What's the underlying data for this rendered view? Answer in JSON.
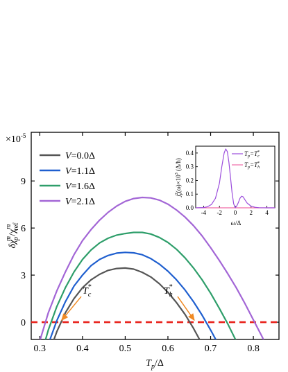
{
  "chart_data": [
    {
      "type": "line",
      "scale_label": "×10",
      "scale_exp": "-5",
      "xlabel": {
        "main": "T",
        "sub": "p",
        "tail": "/Δ"
      },
      "ylabel": {
        "a": "δχ",
        "a_sup": "m",
        "a_sub": "p",
        "b": "/χ",
        "b_sup": "m",
        "b_sub": "ref"
      },
      "xlim": [
        0.28,
        0.86
      ],
      "ylim": [
        -1.1,
        12.1
      ],
      "xticks": [
        "0.3",
        "0.4",
        "0.5",
        "0.6",
        "0.7",
        "0.8"
      ],
      "xtick_values": [
        0.3,
        0.4,
        0.5,
        0.6,
        0.7,
        0.8
      ],
      "yticks": [
        "0",
        "3",
        "6",
        "9"
      ],
      "ytick_values": [
        0,
        3,
        6,
        9
      ],
      "grid": false,
      "legend_position": "top-left",
      "series": [
        {
          "name_prefix": "V",
          "name_value": "=0.0Δ",
          "color": "#555555",
          "x": [
            0.3,
            0.32,
            0.34,
            0.36,
            0.38,
            0.4,
            0.42,
            0.44,
            0.46,
            0.48,
            0.5,
            0.52,
            0.54,
            0.56,
            0.58,
            0.6,
            0.62,
            0.64,
            0.66,
            0.68,
            0.7
          ],
          "y": [
            -3.9,
            -2.1,
            -0.6,
            0.6,
            1.5,
            2.2,
            2.7,
            3.05,
            3.3,
            3.42,
            3.45,
            3.38,
            3.18,
            2.88,
            2.45,
            1.9,
            1.25,
            0.5,
            -0.4,
            -1.4,
            -2.5
          ]
        },
        {
          "name_prefix": "V",
          "name_value": "=1.1Δ",
          "color": "#1f5fcf",
          "x": [
            0.3,
            0.32,
            0.34,
            0.36,
            0.38,
            0.4,
            0.42,
            0.44,
            0.46,
            0.48,
            0.5,
            0.52,
            0.54,
            0.56,
            0.58,
            0.6,
            0.62,
            0.64,
            0.66,
            0.68,
            0.7,
            0.72,
            0.74
          ],
          "y": [
            -3.2,
            -1.4,
            0.1,
            1.3,
            2.3,
            3.0,
            3.6,
            4.0,
            4.25,
            4.4,
            4.45,
            4.42,
            4.3,
            4.05,
            3.7,
            3.25,
            2.7,
            2.05,
            1.3,
            0.45,
            -0.5,
            -1.5,
            -2.6
          ]
        },
        {
          "name_prefix": "V",
          "name_value": "=1.6Δ",
          "color": "#2e9e6a",
          "x": [
            0.3,
            0.32,
            0.34,
            0.36,
            0.38,
            0.4,
            0.42,
            0.44,
            0.46,
            0.48,
            0.5,
            0.52,
            0.54,
            0.56,
            0.58,
            0.6,
            0.62,
            0.64,
            0.66,
            0.68,
            0.7,
            0.72,
            0.74,
            0.76,
            0.78
          ],
          "y": [
            -2.4,
            -0.5,
            1.0,
            2.2,
            3.2,
            4.0,
            4.6,
            5.05,
            5.35,
            5.55,
            5.65,
            5.72,
            5.72,
            5.62,
            5.4,
            5.08,
            4.65,
            4.1,
            3.45,
            2.7,
            1.85,
            0.9,
            -0.1,
            -1.2,
            -2.4
          ]
        },
        {
          "name_prefix": "V",
          "name_value": "=2.1Δ",
          "color": "#a366d6",
          "x": [
            0.3,
            0.32,
            0.34,
            0.36,
            0.38,
            0.4,
            0.42,
            0.44,
            0.46,
            0.48,
            0.5,
            0.52,
            0.54,
            0.56,
            0.58,
            0.6,
            0.62,
            0.64,
            0.66,
            0.68,
            0.7,
            0.72,
            0.74,
            0.76,
            0.78,
            0.8,
            0.82,
            0.84
          ],
          "y": [
            -1.2,
            0.6,
            2.0,
            3.2,
            4.3,
            5.2,
            5.9,
            6.5,
            7.0,
            7.4,
            7.7,
            7.88,
            7.95,
            7.92,
            7.78,
            7.52,
            7.15,
            6.7,
            6.15,
            5.5,
            4.75,
            3.95,
            3.1,
            2.2,
            1.2,
            0.15,
            -0.9,
            -2.0
          ]
        }
      ],
      "reference_line": {
        "y": 0,
        "color": "#e8211a",
        "style": "dashed"
      },
      "annotations": [
        {
          "main": "T",
          "sup": "*",
          "sub": "c",
          "arrow_to_x": 0.345,
          "arrow_to_y": 0.0,
          "text_x": 0.41,
          "text_y": 1.9
        },
        {
          "main": "T",
          "sup": "*",
          "sub": "h",
          "arrow_to_x": 0.668,
          "arrow_to_y": 0.0,
          "text_x": 0.6,
          "text_y": 1.9
        }
      ]
    },
    {
      "type": "line",
      "role": "inset",
      "xlabel": {
        "main": "ω",
        "tail": "/Δ"
      },
      "ylabel": "j²_p(ω)×10³ (Δ/ħ)",
      "xlim": [
        -5,
        5
      ],
      "ylim": [
        0,
        0.45
      ],
      "xticks": [
        "-4",
        "-2",
        "0",
        "2",
        "4"
      ],
      "xtick_values": [
        -4,
        -2,
        0,
        2,
        4
      ],
      "yticks": [
        "0.0",
        "0.1",
        "0.2",
        "0.3",
        "0.4"
      ],
      "ytick_values": [
        0.0,
        0.1,
        0.2,
        0.3,
        0.4
      ],
      "legend_position": "top-right",
      "series": [
        {
          "name": "T_p=T_c*",
          "color": "#9b4ddc",
          "x": [
            -5,
            -4,
            -3.5,
            -3,
            -2.5,
            -2,
            -1.7,
            -1.4,
            -1.2,
            -1.0,
            -0.8,
            -0.6,
            -0.4,
            -0.2,
            0.0,
            0.2,
            0.4,
            0.6,
            0.8,
            1.0,
            1.2,
            1.5,
            2,
            2.5,
            3,
            4,
            5
          ],
          "y": [
            0.0,
            0.002,
            0.008,
            0.025,
            0.07,
            0.18,
            0.3,
            0.4,
            0.43,
            0.41,
            0.33,
            0.22,
            0.11,
            0.03,
            0.0,
            0.015,
            0.04,
            0.07,
            0.085,
            0.08,
            0.06,
            0.035,
            0.012,
            0.004,
            0.001,
            0.0,
            0.0
          ]
        },
        {
          "name": "T_p=T_h*",
          "color": "#f06aa8",
          "x": [
            -5,
            5
          ],
          "y": [
            0.0,
            0.0
          ]
        }
      ],
      "legend_entries": [
        {
          "prefix": "T",
          "prefix_sub": "p",
          "eq": "=T",
          "sup": "*",
          "sub": "c"
        },
        {
          "prefix": "T",
          "prefix_sub": "p",
          "eq": "=T",
          "sup": "*",
          "sub": "h"
        }
      ],
      "ylabel_parts": {
        "a": "j",
        "a_sup": "2",
        "a_sub": "p",
        "b": "(ω)×10",
        "b_sup": "3",
        "c": " (Δ/ħ)"
      }
    }
  ]
}
